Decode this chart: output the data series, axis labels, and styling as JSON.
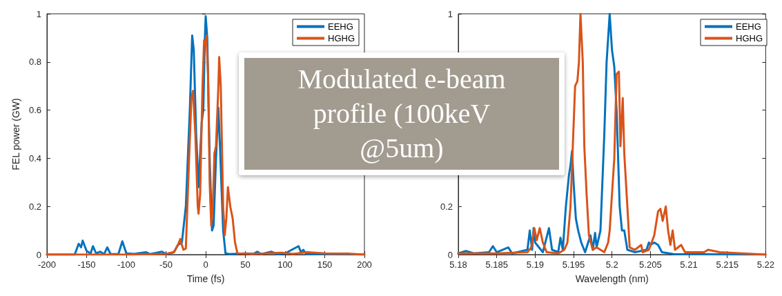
{
  "chart_data": [
    {
      "type": "line",
      "xlabel": "Time (fs)",
      "ylabel": "FEL power (GW)",
      "xlim": [
        -200,
        200
      ],
      "xticks": [
        -200,
        -150,
        -100,
        -50,
        0,
        50,
        100,
        150,
        200
      ],
      "ylim": [
        0,
        1
      ],
      "yticks": [
        0,
        0.2,
        0.4,
        0.6,
        0.8,
        1
      ],
      "legend": "top right",
      "grid": false,
      "marker": "none",
      "line_style": "solid",
      "annotations": [
        "Modulated e-beam profile (100keV @5um)"
      ],
      "series": [
        {
          "name": "EEHG",
          "color": "#0072bd",
          "x": [
            -200,
            -165,
            -160,
            -157,
            -155,
            -150,
            -145,
            -142,
            -138,
            -133,
            -128,
            -124,
            -120,
            -110,
            -105,
            -100,
            -90,
            -75,
            -70,
            -55,
            -50,
            -40,
            -35,
            -30,
            -25,
            -20,
            -17,
            -15,
            -12,
            -9,
            -5,
            -3,
            -1,
            0,
            2,
            5,
            8,
            10,
            13,
            16,
            18,
            22,
            25,
            30,
            50,
            60,
            65,
            70,
            83,
            90,
            100,
            117,
            120,
            123,
            127,
            200
          ],
          "values": [
            0,
            0,
            0.045,
            0.03,
            0.058,
            0.015,
            0.005,
            0.035,
            0.005,
            0.012,
            0.002,
            0.03,
            0.003,
            0.002,
            0.055,
            0.005,
            0.003,
            0.01,
            0.002,
            0.012,
            0.002,
            0.01,
            0.04,
            0.05,
            0.2,
            0.6,
            0.91,
            0.85,
            0.5,
            0.28,
            0.55,
            0.6,
            0.9,
            0.99,
            0.9,
            0.4,
            0.1,
            0.12,
            0.4,
            0.61,
            0.45,
            0.1,
            0.005,
            0.002,
            0.005,
            0.003,
            0.012,
            0.002,
            0.012,
            0.002,
            0.005,
            0.035,
            0.01,
            0.02,
            0.002,
            0
          ]
        },
        {
          "name": "HGHG",
          "color": "#d95319",
          "x": [
            -200,
            -100,
            -50,
            -40,
            -35,
            -32,
            -30,
            -28,
            -25,
            -22,
            -18,
            -16,
            -13,
            -10,
            -9,
            -7,
            -4,
            -2,
            0,
            1,
            3,
            5,
            7,
            9,
            11,
            13,
            16,
            17,
            19,
            22,
            24,
            26,
            28,
            31,
            34,
            37,
            40,
            60,
            77,
            95,
            110,
            128,
            150,
            160,
            180,
            200
          ],
          "values": [
            0,
            0,
            0.003,
            0.01,
            0.04,
            0.065,
            0.04,
            0.02,
            0.025,
            0.3,
            0.65,
            0.68,
            0.5,
            0.2,
            0.17,
            0.25,
            0.7,
            0.89,
            0.87,
            0.91,
            0.75,
            0.3,
            0.12,
            0.2,
            0.42,
            0.45,
            0.7,
            0.82,
            0.7,
            0.2,
            0.08,
            0.15,
            0.28,
            0.2,
            0.15,
            0.05,
            0.005,
            0.003,
            0.005,
            0.008,
            0.003,
            0.01,
            0.005,
            0.004,
            0.004,
            0
          ]
        }
      ]
    },
    {
      "type": "line",
      "xlabel": "Wavelength (nm)",
      "xlim": [
        5.18,
        5.22
      ],
      "xticks": [
        5.18,
        5.185,
        5.19,
        5.195,
        5.2,
        5.205,
        5.21,
        5.215,
        5.22
      ],
      "ylim": [
        0,
        1
      ],
      "yticks": [
        0,
        0.2,
        {
          "value": 0.4,
          "label": null
        },
        {
          "value": 0.6,
          "label": null
        },
        {
          "value": 0.8,
          "label": null
        },
        1
      ],
      "legend": "top right",
      "grid": false,
      "marker": "none",
      "line_style": "solid",
      "series": [
        {
          "name": "EEHG",
          "color": "#0072bd",
          "x": [
            5.18,
            5.181,
            5.182,
            5.184,
            5.1845,
            5.185,
            5.1865,
            5.187,
            5.189,
            5.1893,
            5.1896,
            5.1898,
            5.19,
            5.191,
            5.1918,
            5.1922,
            5.193,
            5.1933,
            5.1936,
            5.194,
            5.1944,
            5.1946,
            5.1948,
            5.195,
            5.1953,
            5.1956,
            5.196,
            5.1965,
            5.1972,
            5.1975,
            5.1978,
            5.198,
            5.1985,
            5.199,
            5.1993,
            5.1997,
            5.2,
            5.2003,
            5.2006,
            5.201,
            5.2013,
            5.2016,
            5.202,
            5.203,
            5.2045,
            5.2048,
            5.205,
            5.2055,
            5.206,
            5.2065,
            5.208,
            5.22
          ],
          "values": [
            0.005,
            0.015,
            0.005,
            0.01,
            0.035,
            0.01,
            0.03,
            0.005,
            0.02,
            0.1,
            0.02,
            0.11,
            0.05,
            0.01,
            0.11,
            0.02,
            0.01,
            0.07,
            0.02,
            0.2,
            0.33,
            0.37,
            0.43,
            0.3,
            0.15,
            0.1,
            0.05,
            0.01,
            0.08,
            0.02,
            0.09,
            0.03,
            0.1,
            0.5,
            0.8,
            1,
            0.85,
            0.78,
            0.6,
            0.2,
            0.1,
            0.1,
            0.02,
            0.01,
            0.02,
            0.05,
            0.04,
            0.05,
            0.04,
            0.01,
            0.002,
            0
          ]
        },
        {
          "name": "HGHG",
          "color": "#d95319",
          "x": [
            5.18,
            5.185,
            5.189,
            5.1895,
            5.1899,
            5.1902,
            5.1906,
            5.191,
            5.1915,
            5.193,
            5.1938,
            5.1942,
            5.1946,
            5.1949,
            5.1952,
            5.1955,
            5.1957,
            5.1959,
            5.1962,
            5.1964,
            5.1967,
            5.197,
            5.1975,
            5.198,
            5.199,
            5.1995,
            5.1997,
            5.2003,
            5.2006,
            5.2009,
            5.2011,
            5.2014,
            5.2016,
            5.202,
            5.2023,
            5.203,
            5.2038,
            5.204,
            5.2048,
            5.2055,
            5.206,
            5.2063,
            5.2066,
            5.207,
            5.2073,
            5.2076,
            5.2079,
            5.2082,
            5.209,
            5.2095,
            5.212,
            5.2125,
            5.214,
            5.22
          ],
          "values": [
            0.005,
            0.005,
            0.01,
            0.03,
            0.11,
            0.06,
            0.11,
            0.05,
            0.01,
            0.005,
            0.02,
            0.05,
            0.2,
            0.45,
            0.7,
            0.72,
            0.8,
            1,
            0.8,
            0.45,
            0.25,
            0.08,
            0.02,
            0.03,
            0.01,
            0.05,
            0.1,
            0.4,
            0.75,
            0.76,
            0.45,
            0.65,
            0.42,
            0.2,
            0.03,
            0.02,
            0.04,
            0.01,
            0.02,
            0.08,
            0.18,
            0.19,
            0.14,
            0.2,
            0.1,
            0.04,
            0.1,
            0.02,
            0.04,
            0.01,
            0.01,
            0.02,
            0.01,
            0
          ]
        }
      ]
    }
  ]
}
